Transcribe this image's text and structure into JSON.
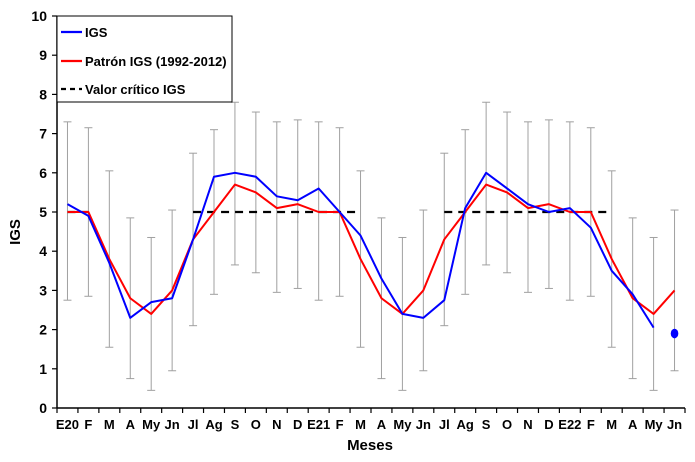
{
  "chart_data": {
    "type": "line",
    "ylabel": "IGS",
    "xlabel": "Meses",
    "ylim": [
      0,
      10
    ],
    "yticks": [
      0,
      1,
      2,
      3,
      4,
      5,
      6,
      7,
      8,
      9,
      10
    ],
    "grid": false,
    "legend_position": "top-left",
    "categories": [
      "E20",
      "F",
      "M",
      "A",
      "My",
      "Jn",
      "Jl",
      "Ag",
      "S",
      "O",
      "N",
      "D",
      "E21",
      "F",
      "M",
      "A",
      "My",
      "Jn",
      "Jl",
      "Ag",
      "S",
      "O",
      "N",
      "D",
      "E22",
      "F",
      "M",
      "A",
      "My",
      "Jn"
    ],
    "series": [
      {
        "name": "IGS",
        "color": "#0000ff",
        "style": "solid",
        "values": [
          5.2,
          4.9,
          3.7,
          2.3,
          2.7,
          2.8,
          4.3,
          5.9,
          6.0,
          5.9,
          5.4,
          5.3,
          5.6,
          5.0,
          4.4,
          3.3,
          2.4,
          2.3,
          2.75,
          5.1,
          6.0,
          5.6,
          5.2,
          5.0,
          5.1,
          4.6,
          3.5,
          2.9,
          2.05,
          null
        ]
      },
      {
        "name": "Patrón IGS (1992-2012)",
        "color": "#ff0000",
        "style": "solid",
        "values": [
          5.0,
          5.0,
          3.8,
          2.8,
          2.4,
          3.0,
          4.3,
          5.0,
          5.7,
          5.5,
          5.1,
          5.2,
          5.0,
          5.0,
          3.8,
          2.8,
          2.4,
          3.0,
          4.3,
          5.0,
          5.7,
          5.5,
          5.1,
          5.2,
          5.0,
          5.0,
          3.8,
          2.8,
          2.4,
          3.0
        ]
      },
      {
        "name": "Valor crítico IGS",
        "color": "#000000",
        "style": "dashed",
        "segments": [
          [
            0,
            1,
            5.0
          ],
          [
            6,
            14,
            5.0
          ],
          [
            18,
            26,
            5.0
          ]
        ]
      }
    ],
    "error_bars": {
      "color": "#a0a0a0",
      "upper": [
        7.3,
        7.15,
        6.05,
        4.85,
        4.35,
        5.05,
        6.5,
        7.1,
        7.8,
        7.55,
        7.3,
        7.35,
        7.3,
        7.15,
        6.05,
        4.85,
        4.35,
        5.05,
        6.5,
        7.1,
        7.8,
        7.55,
        7.3,
        7.35,
        7.3,
        7.15,
        6.05,
        4.85,
        4.35,
        5.05
      ],
      "lower": [
        2.75,
        2.85,
        1.55,
        0.75,
        0.45,
        0.95,
        2.1,
        2.9,
        3.65,
        3.45,
        2.95,
        3.05,
        2.75,
        2.85,
        1.55,
        0.75,
        0.45,
        0.95,
        2.1,
        2.9,
        3.65,
        3.45,
        2.95,
        3.05,
        2.75,
        2.85,
        1.55,
        0.75,
        0.45,
        0.95
      ]
    },
    "marker": {
      "name": "IGS",
      "x_index": 29,
      "value": 1.9,
      "color": "#0000ff"
    }
  }
}
